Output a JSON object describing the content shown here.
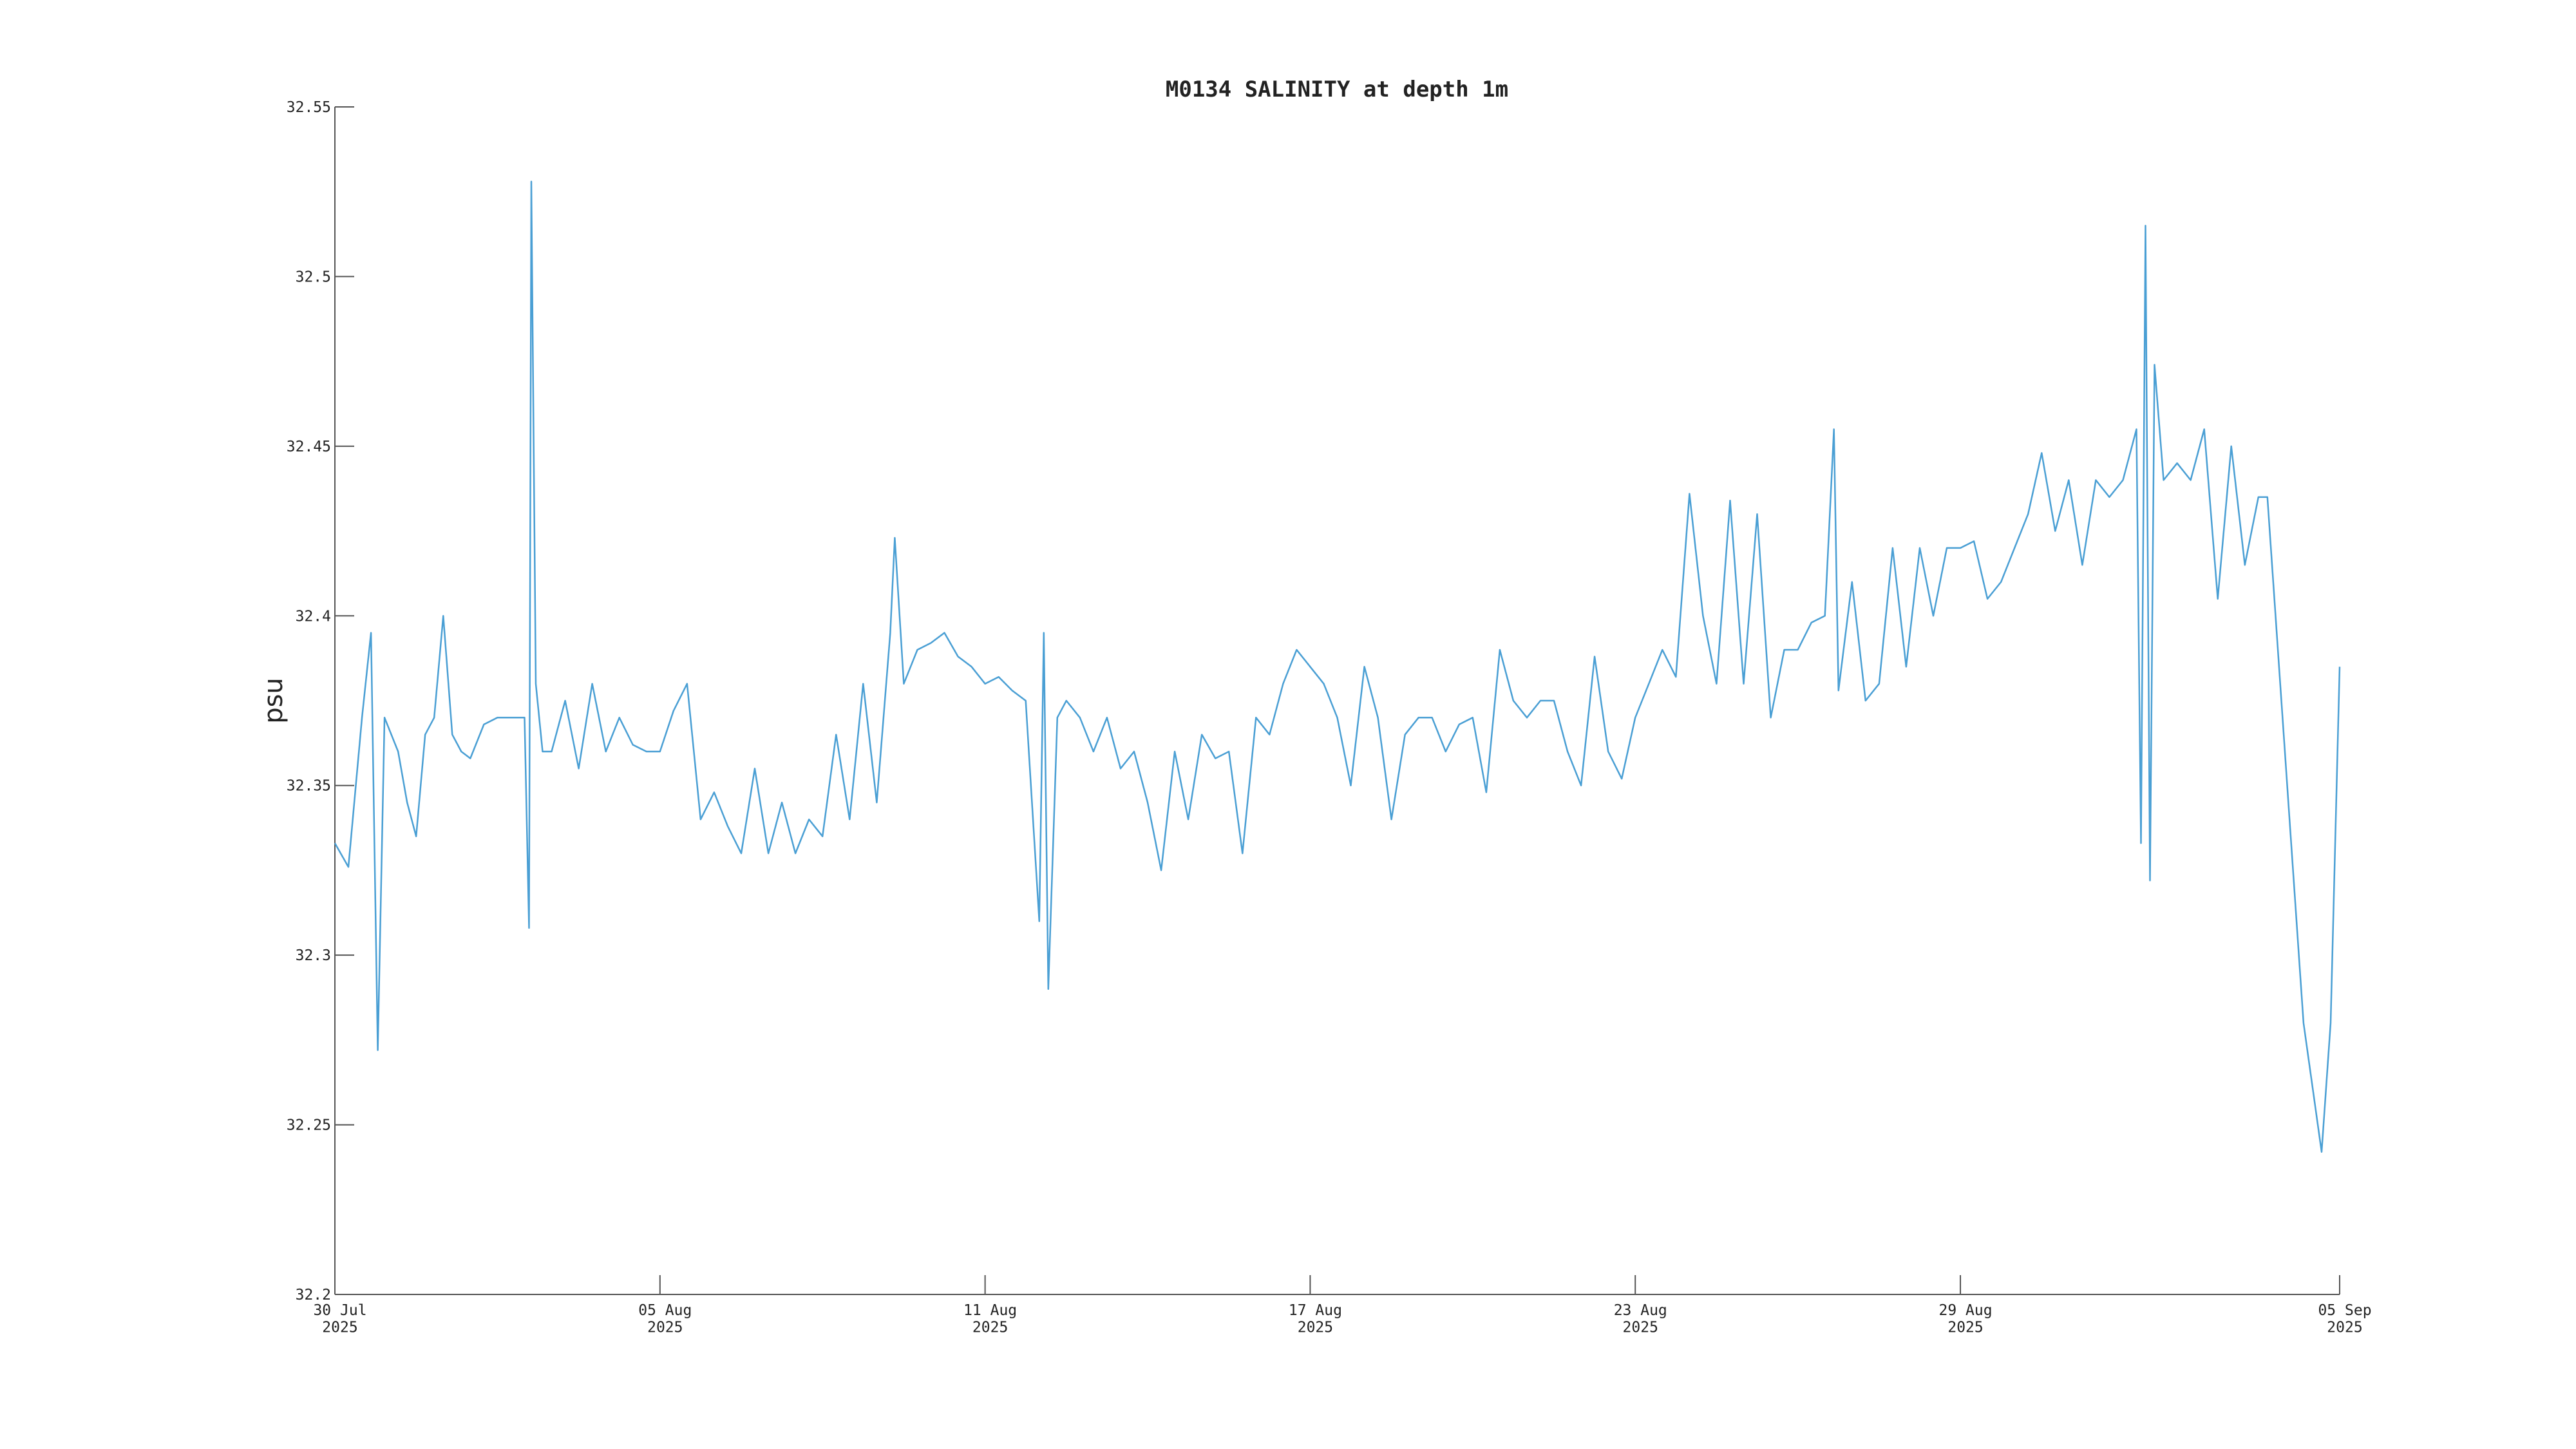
{
  "chart_data": {
    "type": "line",
    "title": "M0134 SALINITY at depth 1m",
    "y_label": "psu",
    "color": "#4a9fd4",
    "ylim": [
      32.2,
      32.55
    ],
    "yticks": [
      32.2,
      32.25,
      32.3,
      32.35,
      32.4,
      32.45,
      32.5,
      32.55
    ],
    "xlim": [
      "2025-07-30T00:00",
      "2025-09-05T00:00"
    ],
    "xticks": [
      {
        "value": "2025-07-30T00:00",
        "label": "30 Jul\n2025"
      },
      {
        "value": "2025-08-05T00:00",
        "label": "05 Aug\n2025"
      },
      {
        "value": "2025-08-11T00:00",
        "label": "11 Aug\n2025"
      },
      {
        "value": "2025-08-17T00:00",
        "label": "17 Aug\n2025"
      },
      {
        "value": "2025-08-23T00:00",
        "label": "23 Aug\n2025"
      },
      {
        "value": "2025-08-29T00:00",
        "label": "29 Aug\n2025"
      },
      {
        "value": "2025-09-05T00:00",
        "label": "05 Sep\n2025"
      }
    ],
    "x": [
      "2025-07-30T00:00",
      "2025-07-30T06:00",
      "2025-07-30T12:00",
      "2025-07-30T16:00",
      "2025-07-30T19:00",
      "2025-07-30T22:00",
      "2025-07-31T04:00",
      "2025-07-31T08:00",
      "2025-07-31T12:00",
      "2025-07-31T16:00",
      "2025-07-31T20:00",
      "2025-08-01T00:00",
      "2025-08-01T04:00",
      "2025-08-01T08:00",
      "2025-08-01T12:00",
      "2025-08-01T18:00",
      "2025-08-02T00:00",
      "2025-08-02T06:00",
      "2025-08-02T12:00",
      "2025-08-02T14:00",
      "2025-08-02T15:00",
      "2025-08-02T17:00",
      "2025-08-02T20:00",
      "2025-08-03T00:00",
      "2025-08-03T06:00",
      "2025-08-03T12:00",
      "2025-08-03T18:00",
      "2025-08-04T00:00",
      "2025-08-04T06:00",
      "2025-08-04T12:00",
      "2025-08-04T18:00",
      "2025-08-05T00:00",
      "2025-08-05T06:00",
      "2025-08-05T12:00",
      "2025-08-05T18:00",
      "2025-08-06T00:00",
      "2025-08-06T06:00",
      "2025-08-06T12:00",
      "2025-08-06T18:00",
      "2025-08-07T00:00",
      "2025-08-07T06:00",
      "2025-08-07T12:00",
      "2025-08-07T18:00",
      "2025-08-08T00:00",
      "2025-08-08T06:00",
      "2025-08-08T12:00",
      "2025-08-08T18:00",
      "2025-08-09T00:00",
      "2025-08-09T06:00",
      "2025-08-09T08:00",
      "2025-08-09T12:00",
      "2025-08-09T18:00",
      "2025-08-10T00:00",
      "2025-08-10T06:00",
      "2025-08-10T12:00",
      "2025-08-10T18:00",
      "2025-08-11T00:00",
      "2025-08-11T06:00",
      "2025-08-11T12:00",
      "2025-08-11T18:00",
      "2025-08-12T00:00",
      "2025-08-12T02:00",
      "2025-08-12T04:00",
      "2025-08-12T08:00",
      "2025-08-12T12:00",
      "2025-08-12T18:00",
      "2025-08-13T00:00",
      "2025-08-13T06:00",
      "2025-08-13T12:00",
      "2025-08-13T18:00",
      "2025-08-14T00:00",
      "2025-08-14T06:00",
      "2025-08-14T12:00",
      "2025-08-14T18:00",
      "2025-08-15T00:00",
      "2025-08-15T06:00",
      "2025-08-15T12:00",
      "2025-08-15T18:00",
      "2025-08-16T00:00",
      "2025-08-16T06:00",
      "2025-08-16T12:00",
      "2025-08-16T18:00",
      "2025-08-17T00:00",
      "2025-08-17T06:00",
      "2025-08-17T12:00",
      "2025-08-17T18:00",
      "2025-08-18T00:00",
      "2025-08-18T06:00",
      "2025-08-18T12:00",
      "2025-08-18T18:00",
      "2025-08-19T00:00",
      "2025-08-19T06:00",
      "2025-08-19T12:00",
      "2025-08-19T18:00",
      "2025-08-20T00:00",
      "2025-08-20T06:00",
      "2025-08-20T12:00",
      "2025-08-20T18:00",
      "2025-08-21T00:00",
      "2025-08-21T06:00",
      "2025-08-21T12:00",
      "2025-08-21T18:00",
      "2025-08-22T00:00",
      "2025-08-22T06:00",
      "2025-08-22T12:00",
      "2025-08-22T18:00",
      "2025-08-23T00:00",
      "2025-08-23T06:00",
      "2025-08-23T12:00",
      "2025-08-23T18:00",
      "2025-08-24T00:00",
      "2025-08-24T06:00",
      "2025-08-24T12:00",
      "2025-08-24T18:00",
      "2025-08-25T00:00",
      "2025-08-25T06:00",
      "2025-08-25T12:00",
      "2025-08-25T18:00",
      "2025-08-26T00:00",
      "2025-08-26T06:00",
      "2025-08-26T12:00",
      "2025-08-26T16:00",
      "2025-08-26T18:00",
      "2025-08-27T00:00",
      "2025-08-27T06:00",
      "2025-08-27T12:00",
      "2025-08-27T18:00",
      "2025-08-28T00:00",
      "2025-08-28T06:00",
      "2025-08-28T12:00",
      "2025-08-28T18:00",
      "2025-08-29T00:00",
      "2025-08-29T06:00",
      "2025-08-29T12:00",
      "2025-08-29T18:00",
      "2025-08-30T00:00",
      "2025-08-30T06:00",
      "2025-08-30T12:00",
      "2025-08-30T18:00",
      "2025-08-31T00:00",
      "2025-08-31T06:00",
      "2025-08-31T12:00",
      "2025-08-31T18:00",
      "2025-09-01T00:00",
      "2025-09-01T06:00",
      "2025-09-01T08:00",
      "2025-09-01T10:00",
      "2025-09-01T12:00",
      "2025-09-01T14:00",
      "2025-09-01T18:00",
      "2025-09-02T00:00",
      "2025-09-02T06:00",
      "2025-09-02T12:00",
      "2025-09-02T18:00",
      "2025-09-03T00:00",
      "2025-09-03T06:00",
      "2025-09-03T12:00",
      "2025-09-03T16:00",
      "2025-09-04T08:00",
      "2025-09-04T16:00",
      "2025-09-04T20:00",
      "2025-09-05T00:00"
    ],
    "values": [
      32.333,
      32.326,
      32.37,
      32.395,
      32.272,
      32.37,
      32.36,
      32.345,
      32.335,
      32.365,
      32.37,
      32.4,
      32.365,
      32.36,
      32.358,
      32.368,
      32.37,
      32.37,
      32.37,
      32.308,
      32.528,
      32.38,
      32.36,
      32.36,
      32.375,
      32.355,
      32.38,
      32.36,
      32.37,
      32.362,
      32.36,
      32.36,
      32.372,
      32.38,
      32.34,
      32.348,
      32.338,
      32.33,
      32.355,
      32.33,
      32.345,
      32.33,
      32.34,
      32.335,
      32.365,
      32.34,
      32.38,
      32.345,
      32.395,
      32.423,
      32.38,
      32.39,
      32.392,
      32.395,
      32.388,
      32.385,
      32.38,
      32.382,
      32.378,
      32.375,
      32.31,
      32.395,
      32.29,
      32.37,
      32.375,
      32.37,
      32.36,
      32.37,
      32.355,
      32.36,
      32.345,
      32.325,
      32.36,
      32.34,
      32.365,
      32.358,
      32.36,
      32.33,
      32.37,
      32.365,
      32.38,
      32.39,
      32.385,
      32.38,
      32.37,
      32.35,
      32.385,
      32.37,
      32.34,
      32.365,
      32.37,
      32.37,
      32.36,
      32.368,
      32.37,
      32.348,
      32.39,
      32.375,
      32.37,
      32.375,
      32.375,
      32.36,
      32.35,
      32.388,
      32.36,
      32.352,
      32.37,
      32.38,
      32.39,
      32.382,
      32.436,
      32.4,
      32.38,
      32.434,
      32.38,
      32.43,
      32.37,
      32.39,
      32.39,
      32.398,
      32.4,
      32.455,
      32.378,
      32.41,
      32.375,
      32.38,
      32.42,
      32.385,
      32.42,
      32.4,
      32.42,
      32.42,
      32.422,
      32.405,
      32.41,
      32.42,
      32.43,
      32.448,
      32.425,
      32.44,
      32.415,
      32.44,
      32.435,
      32.44,
      32.455,
      32.333,
      32.515,
      32.322,
      32.474,
      32.44,
      32.445,
      32.44,
      32.455,
      32.405,
      32.45,
      32.415,
      32.435,
      32.435,
      32.28,
      32.242,
      32.28,
      32.385
    ]
  }
}
